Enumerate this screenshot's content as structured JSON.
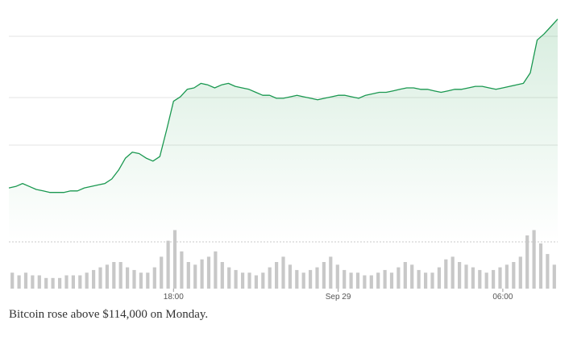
{
  "caption": "Bitcoin rose above $114,000 on Monday.",
  "colors": {
    "line": "#1a9850",
    "area_top": "#4caf6e",
    "volume": "#c8c8c8",
    "grid": "#e3e3e3",
    "dotted": "#c8c8c8"
  },
  "chart_data": {
    "type": "line",
    "title": "",
    "xlabel": "",
    "ylabel": "",
    "grid": true,
    "legend": "none",
    "x_ticks": [
      {
        "label": "18:00",
        "index": 24
      },
      {
        "label": "Sep 29",
        "index": 48
      },
      {
        "label": "06:00",
        "index": 72
      }
    ],
    "series": [
      {
        "values": [
          265,
          266,
          268,
          266,
          264,
          263,
          262,
          262,
          262,
          263,
          263,
          265,
          266,
          267,
          268,
          271,
          277,
          285,
          289,
          288,
          285,
          283,
          286,
          304,
          323,
          326,
          331,
          332,
          335,
          334,
          332,
          334,
          335,
          333,
          332,
          331,
          329,
          327,
          327,
          325,
          325,
          326,
          327,
          326,
          325,
          324,
          325,
          326,
          327,
          327,
          326,
          325,
          327,
          328,
          329,
          329,
          330,
          331,
          332,
          332,
          331,
          331,
          330,
          329,
          330,
          331,
          331,
          332,
          333,
          333,
          332,
          331,
          332,
          333,
          334,
          335,
          342,
          364,
          368,
          373,
          378
        ]
      }
    ],
    "volume": [
      6,
      5,
      6,
      5,
      5,
      4,
      4,
      4,
      5,
      5,
      5,
      6,
      7,
      8,
      9,
      10,
      10,
      8,
      7,
      6,
      6,
      8,
      12,
      18,
      22,
      14,
      10,
      9,
      11,
      12,
      14,
      10,
      8,
      7,
      6,
      6,
      5,
      6,
      8,
      10,
      12,
      9,
      7,
      6,
      7,
      8,
      10,
      12,
      9,
      7,
      6,
      6,
      5,
      5,
      6,
      7,
      6,
      8,
      10,
      9,
      7,
      6,
      6,
      8,
      11,
      12,
      10,
      9,
      8,
      7,
      6,
      7,
      8,
      9,
      10,
      12,
      20,
      22,
      17,
      13,
      9
    ]
  }
}
